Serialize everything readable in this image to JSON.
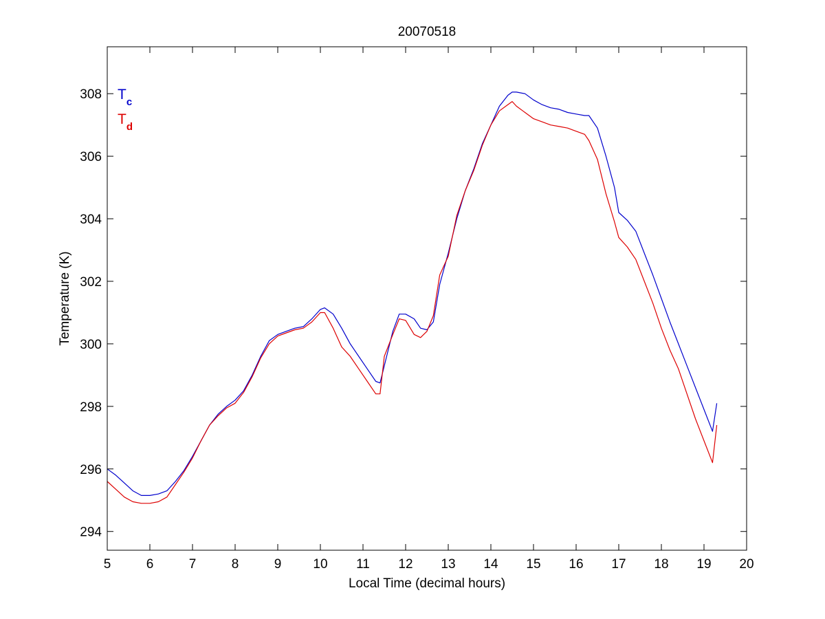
{
  "chart_data": {
    "type": "line",
    "title": "20070518",
    "xlabel": "Local Time (decimal hours)",
    "ylabel": "Temperature (K)",
    "xlim": [
      5,
      20
    ],
    "ylim": [
      293.4,
      309.5
    ],
    "xticks": [
      5,
      6,
      7,
      8,
      9,
      10,
      11,
      12,
      13,
      14,
      15,
      16,
      17,
      18,
      19,
      20
    ],
    "yticks": [
      294,
      296,
      298,
      300,
      302,
      304,
      306,
      308
    ],
    "grid": false,
    "legend": {
      "placement": "top-left",
      "entries": [
        {
          "main": "T",
          "sub": "c",
          "color": "#0000cc"
        },
        {
          "main": "T",
          "sub": "d",
          "color": "#dd0000"
        }
      ]
    },
    "series": [
      {
        "color": "#0000cc",
        "x": [
          5.0,
          5.2,
          5.4,
          5.6,
          5.8,
          6.0,
          6.2,
          6.4,
          6.6,
          6.8,
          7.0,
          7.2,
          7.4,
          7.6,
          7.8,
          8.0,
          8.2,
          8.4,
          8.6,
          8.8,
          9.0,
          9.2,
          9.4,
          9.6,
          9.8,
          10.0,
          10.1,
          10.3,
          10.5,
          10.7,
          10.9,
          11.1,
          11.3,
          11.4,
          11.5,
          11.7,
          11.85,
          12.0,
          12.2,
          12.35,
          12.5,
          12.65,
          12.8,
          13.0,
          13.2,
          13.4,
          13.6,
          13.8,
          14.0,
          14.2,
          14.4,
          14.5,
          14.6,
          14.8,
          15.0,
          15.2,
          15.4,
          15.6,
          15.8,
          16.0,
          16.2,
          16.3,
          16.5,
          16.7,
          16.9,
          17.0,
          17.2,
          17.4,
          17.6,
          17.8,
          18.0,
          18.2,
          18.4,
          18.6,
          18.8,
          19.0,
          19.2,
          19.3
        ],
        "y": [
          296.0,
          295.8,
          295.55,
          295.3,
          295.15,
          295.15,
          295.2,
          295.3,
          295.6,
          295.95,
          296.4,
          296.9,
          297.4,
          297.75,
          298.0,
          298.2,
          298.5,
          299.0,
          299.6,
          300.1,
          300.3,
          300.4,
          300.5,
          300.55,
          300.8,
          301.1,
          301.15,
          300.95,
          300.5,
          300.0,
          299.6,
          299.2,
          298.8,
          298.75,
          299.3,
          300.4,
          300.95,
          300.95,
          300.8,
          300.5,
          300.45,
          300.7,
          301.9,
          302.9,
          304.0,
          304.9,
          305.6,
          306.4,
          307.0,
          307.6,
          307.95,
          308.05,
          308.05,
          308.0,
          307.8,
          307.65,
          307.55,
          307.5,
          307.4,
          307.35,
          307.3,
          307.3,
          306.9,
          306.0,
          305.0,
          304.2,
          303.95,
          303.6,
          302.9,
          302.2,
          301.45,
          300.7,
          300.0,
          299.3,
          298.6,
          297.9,
          297.2,
          298.1
        ]
      },
      {
        "color": "#dd0000",
        "x": [
          5.0,
          5.2,
          5.4,
          5.6,
          5.8,
          6.0,
          6.2,
          6.4,
          6.6,
          6.8,
          7.0,
          7.2,
          7.4,
          7.6,
          7.8,
          8.0,
          8.2,
          8.4,
          8.6,
          8.8,
          9.0,
          9.2,
          9.4,
          9.6,
          9.8,
          10.0,
          10.1,
          10.3,
          10.5,
          10.7,
          10.9,
          11.1,
          11.3,
          11.4,
          11.5,
          11.7,
          11.85,
          12.0,
          12.2,
          12.35,
          12.5,
          12.65,
          12.8,
          13.0,
          13.2,
          13.4,
          13.6,
          13.8,
          14.0,
          14.2,
          14.4,
          14.5,
          14.6,
          14.8,
          15.0,
          15.2,
          15.4,
          15.6,
          15.8,
          16.0,
          16.2,
          16.3,
          16.5,
          16.7,
          16.9,
          17.0,
          17.2,
          17.4,
          17.6,
          17.8,
          18.0,
          18.2,
          18.4,
          18.6,
          18.8,
          19.0,
          19.2,
          19.3
        ],
        "y": [
          295.6,
          295.35,
          295.1,
          294.95,
          294.9,
          294.9,
          294.95,
          295.1,
          295.5,
          295.9,
          296.35,
          296.9,
          297.4,
          297.7,
          297.95,
          298.1,
          298.45,
          298.95,
          299.55,
          300.0,
          300.25,
          300.35,
          300.45,
          300.5,
          300.7,
          301.0,
          301.0,
          300.5,
          299.9,
          299.6,
          299.2,
          298.8,
          298.4,
          298.4,
          299.6,
          300.3,
          300.8,
          300.75,
          300.3,
          300.2,
          300.4,
          300.9,
          302.2,
          302.8,
          304.1,
          304.9,
          305.55,
          306.35,
          307.0,
          307.45,
          307.65,
          307.75,
          307.6,
          307.4,
          307.2,
          307.1,
          307.0,
          306.95,
          306.9,
          306.8,
          306.7,
          306.5,
          305.9,
          304.8,
          303.9,
          303.4,
          303.1,
          302.7,
          302.0,
          301.3,
          300.5,
          299.8,
          299.2,
          298.4,
          297.6,
          296.9,
          296.2,
          297.4
        ]
      }
    ]
  }
}
